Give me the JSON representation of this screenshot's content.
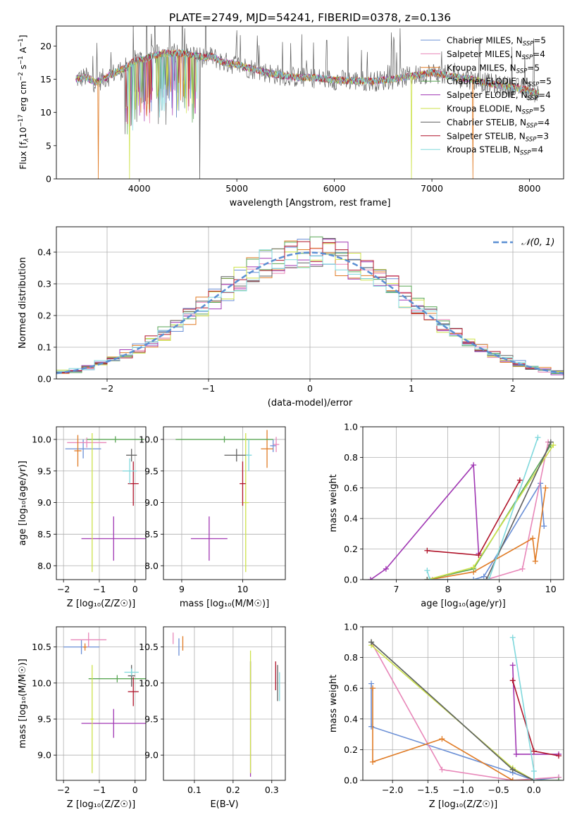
{
  "figure": {
    "title": "PLATE=2749, MJD=54241, FIBERID=0378, z=0.136",
    "series": [
      {
        "name": "Chabrier MILES, N",
        "sub": "SSP",
        "n": "=5",
        "color": "#6a8fd6"
      },
      {
        "name": "Salpeter MILES, N",
        "sub": "SSP",
        "n": "=4",
        "color": "#e887b9"
      },
      {
        "name": "Kroupa MILES, N",
        "sub": "SSP",
        "n": "=5",
        "color": "#e07b25"
      },
      {
        "name": "Chabrier ELODIE, N",
        "sub": "SSP",
        "n": "=5",
        "color": "#5aa655"
      },
      {
        "name": "Salpeter ELODIE, N",
        "sub": "SSP",
        "n": "=4",
        "color": "#a037b3"
      },
      {
        "name": "Kroupa ELODIE, N",
        "sub": "SSP",
        "n": "=5",
        "color": "#cde24a"
      },
      {
        "name": "Chabrier STELIB, N",
        "sub": "SSP",
        "n": "=4",
        "color": "#606060"
      },
      {
        "name": "Salpeter STELIB, N",
        "sub": "SSP",
        "n": "=3",
        "color": "#b0142a"
      },
      {
        "name": "Kroupa STELIB, N",
        "sub": "SSP",
        "n": "=4",
        "color": "#7fd8dc"
      }
    ]
  },
  "chart_data": [
    {
      "id": "spectrum",
      "type": "line",
      "xlabel": "wavelength [Angstrom, rest frame]",
      "ylabel_prefix": "Flux [f",
      "ylabel_sub": "λ",
      "ylabel_mid": "10",
      "ylabel_sup1": "−17",
      "ylabel_mid2": " erg cm",
      "ylabel_sup2": "−2",
      "ylabel_mid3": " s",
      "ylabel_sup3": "−1",
      "ylabel_mid4": " A",
      "ylabel_sup4": "−1",
      "ylabel_end": "]",
      "xlim": [
        3150,
        8350
      ],
      "ylim": [
        0,
        23
      ],
      "xticks": [
        4000,
        5000,
        6000,
        7000,
        8000
      ],
      "yticks": [
        0,
        5,
        10,
        15,
        20
      ],
      "continuum": [
        [
          3350,
          15.0
        ],
        [
          3450,
          15.3
        ],
        [
          3550,
          14.5
        ],
        [
          3650,
          15.2
        ],
        [
          3750,
          16.0
        ],
        [
          3850,
          16.6
        ],
        [
          3950,
          17.8
        ],
        [
          4050,
          18.0
        ],
        [
          4150,
          18.6
        ],
        [
          4250,
          18.9
        ],
        [
          4350,
          18.9
        ],
        [
          4450,
          18.9
        ],
        [
          4550,
          18.6
        ],
        [
          4650,
          18.3
        ],
        [
          4750,
          18.4
        ],
        [
          4850,
          17.6
        ],
        [
          5000,
          17.2
        ],
        [
          5200,
          16.4
        ],
        [
          5400,
          15.7
        ],
        [
          5600,
          15.3
        ],
        [
          5800,
          15.2
        ],
        [
          6000,
          14.9
        ],
        [
          6200,
          14.8
        ],
        [
          6400,
          14.7
        ],
        [
          6600,
          15.0
        ],
        [
          6800,
          15.5
        ],
        [
          7000,
          16.0
        ],
        [
          7200,
          15.4
        ],
        [
          7400,
          15.0
        ],
        [
          7600,
          14.3
        ],
        [
          7800,
          13.9
        ],
        [
          8000,
          13.3
        ],
        [
          8100,
          12.7
        ]
      ],
      "dips": [
        [
          3580,
          0
        ],
        [
          3900,
          0
        ],
        [
          4620,
          0
        ],
        [
          6790,
          0
        ],
        [
          7420,
          0
        ]
      ]
    },
    {
      "id": "residuals",
      "type": "histogram",
      "xlabel": "(data-model)/error",
      "ylabel": "Normed distribution",
      "legend": "𝒩(0, 1)",
      "xlim": [
        -2.5,
        2.5
      ],
      "ylim": [
        0,
        0.48
      ],
      "xticks": [
        -2,
        -1,
        0,
        1,
        2
      ],
      "yticks": [
        0.0,
        0.1,
        0.2,
        0.3,
        0.4
      ],
      "bins": 40,
      "gaussian": {
        "mu": 0,
        "sigma": 1
      }
    },
    {
      "id": "age-vs-z",
      "type": "errorbar",
      "xlabel": "Z [log₁₀(Z/Z☉)]",
      "ylabel": "age  [log₁₀(age/yr)]",
      "xlim": [
        -2.2,
        0.3
      ],
      "ylim": [
        7.78,
        10.2
      ],
      "xticks": [
        -2,
        -1,
        0
      ],
      "yticks": [
        8.0,
        8.5,
        9.0,
        9.5,
        10.0
      ],
      "points": [
        {
          "s": 0,
          "x": -1.45,
          "y": 9.85,
          "xe": 0.5,
          "ye": 0.15
        },
        {
          "s": 1,
          "x": -1.35,
          "y": 9.95,
          "xe": 0.55,
          "ye": 0.08
        },
        {
          "s": 2,
          "x": -1.6,
          "y": 9.82,
          "xe": 0.1,
          "ye": 0.25
        },
        {
          "s": 3,
          "x": -0.55,
          "y": 10.0,
          "xe": 0.8,
          "ye": 0.05
        },
        {
          "s": 4,
          "x": -0.6,
          "y": 8.43,
          "xe": 0.9,
          "ye": 0.35
        },
        {
          "s": 5,
          "x": -1.2,
          "y": 9.0,
          "xe": 0.05,
          "ye": 1.1
        },
        {
          "s": 6,
          "x": -0.1,
          "y": 9.75,
          "xe": 0.15,
          "ye": 0.1
        },
        {
          "s": 7,
          "x": -0.05,
          "y": 9.3,
          "xe": 0.15,
          "ye": 0.35
        },
        {
          "s": 8,
          "x": -0.15,
          "y": 9.5,
          "xe": 0.2,
          "ye": 0.2
        }
      ]
    },
    {
      "id": "age-vs-mass",
      "type": "errorbar",
      "xlabel": "mass [log₁₀(M/M☉)]",
      "ylabel": "",
      "xlim": [
        8.7,
        10.7
      ],
      "ylim": [
        7.78,
        10.2
      ],
      "xticks": [
        9,
        10
      ],
      "yticks": [
        8.0,
        8.5,
        9.0,
        9.5,
        10.0
      ],
      "points": [
        {
          "s": 0,
          "x": 10.5,
          "y": 9.9,
          "xe": 0.05,
          "ye": 0.1
        },
        {
          "s": 1,
          "x": 10.55,
          "y": 9.92,
          "xe": 0.05,
          "ye": 0.12
        },
        {
          "s": 2,
          "x": 10.4,
          "y": 9.85,
          "xe": 0.1,
          "ye": 0.3
        },
        {
          "s": 3,
          "x": 9.7,
          "y": 10.0,
          "xe": 0.8,
          "ye": 0.05
        },
        {
          "s": 4,
          "x": 9.45,
          "y": 8.43,
          "xe": 0.3,
          "ye": 0.35
        },
        {
          "s": 5,
          "x": 10.05,
          "y": 9.0,
          "xe": 0.05,
          "ye": 1.1
        },
        {
          "s": 6,
          "x": 9.9,
          "y": 9.75,
          "xe": 0.2,
          "ye": 0.1
        },
        {
          "s": 7,
          "x": 10.0,
          "y": 9.3,
          "xe": 0.05,
          "ye": 0.35
        },
        {
          "s": 8,
          "x": 10.1,
          "y": 9.75,
          "xe": 0.05,
          "ye": 0.25
        }
      ]
    },
    {
      "id": "weight-vs-age",
      "type": "line",
      "xlabel": "age  [log₁₀(age/yr)]",
      "ylabel": "mass weight",
      "xlim": [
        6.35,
        10.25
      ],
      "ylim": [
        0,
        1.0
      ],
      "xticks": [
        7,
        8,
        9,
        10
      ],
      "yticks": [
        0.0,
        0.2,
        0.4,
        0.6,
        0.8,
        1.0
      ],
      "series": [
        {
          "s": 0,
          "points": [
            [
              7.6,
              0.0
            ],
            [
              8.5,
              0.0
            ],
            [
              8.7,
              0.02
            ],
            [
              9.8,
              0.63
            ],
            [
              9.87,
              0.35
            ]
          ]
        },
        {
          "s": 1,
          "points": [
            [
              7.7,
              0.0
            ],
            [
              8.75,
              0.0
            ],
            [
              9.45,
              0.07
            ],
            [
              9.95,
              0.9
            ]
          ]
        },
        {
          "s": 2,
          "points": [
            [
              7.65,
              0.0
            ],
            [
              8.5,
              0.05
            ],
            [
              9.65,
              0.27
            ],
            [
              9.7,
              0.12
            ],
            [
              9.9,
              0.6
            ]
          ]
        },
        {
          "s": 3,
          "points": [
            [
              7.6,
              0.0
            ],
            [
              8.5,
              0.07
            ],
            [
              10.0,
              0.88
            ]
          ]
        },
        {
          "s": 4,
          "points": [
            [
              6.5,
              0.0
            ],
            [
              6.8,
              0.07
            ],
            [
              8.5,
              0.75
            ],
            [
              8.6,
              0.17
            ]
          ]
        },
        {
          "s": 5,
          "points": [
            [
              7.6,
              0.0
            ],
            [
              8.5,
              0.08
            ],
            [
              10.05,
              0.88
            ]
          ]
        },
        {
          "s": 6,
          "points": [
            [
              7.6,
              0.0
            ],
            [
              8.75,
              0.0
            ],
            [
              10.0,
              0.9
            ]
          ]
        },
        {
          "s": 7,
          "points": [
            [
              7.6,
              0.19
            ],
            [
              8.6,
              0.16
            ],
            [
              9.4,
              0.65
            ]
          ]
        },
        {
          "s": 8,
          "points": [
            [
              7.6,
              0.06
            ],
            [
              7.65,
              0.0
            ],
            [
              8.8,
              0.0
            ],
            [
              9.75,
              0.93
            ]
          ]
        }
      ]
    },
    {
      "id": "mass-vs-z",
      "type": "errorbar",
      "xlabel": "Z [log₁₀(Z/Z☉)]",
      "ylabel": "mass [log₁₀(M/M☉)]",
      "xlim": [
        -2.2,
        0.3
      ],
      "ylim": [
        8.65,
        10.78
      ],
      "xticks": [
        -2,
        -1,
        0
      ],
      "yticks": [
        9.0,
        9.5,
        10.0,
        10.5
      ],
      "points": [
        {
          "s": 0,
          "x": -1.5,
          "y": 10.5,
          "xe": 0.5,
          "ye": 0.1
        },
        {
          "s": 1,
          "x": -1.3,
          "y": 10.6,
          "xe": 0.5,
          "ye": 0.1
        },
        {
          "s": 2,
          "x": -1.4,
          "y": 10.5,
          "xe": 0.05,
          "ye": 0.05
        },
        {
          "s": 3,
          "x": -0.5,
          "y": 10.06,
          "xe": 0.8,
          "ye": 0.05
        },
        {
          "s": 4,
          "x": -0.6,
          "y": 9.44,
          "xe": 0.9,
          "ye": 0.2
        },
        {
          "s": 5,
          "x": -1.2,
          "y": 9.5,
          "xe": 0.05,
          "ye": 0.75
        },
        {
          "s": 6,
          "x": -0.1,
          "y": 10.1,
          "xe": 0.1,
          "ye": 0.15
        },
        {
          "s": 7,
          "x": -0.05,
          "y": 9.88,
          "xe": 0.15,
          "ye": 0.2
        },
        {
          "s": 8,
          "x": -0.1,
          "y": 10.15,
          "xe": 0.2,
          "ye": 0.05
        }
      ]
    },
    {
      "id": "mass-vs-ebv",
      "type": "errorbar",
      "xlabel": "E(B-V)",
      "ylabel": "",
      "xlim": [
        0.02,
        0.335
      ],
      "ylim": [
        8.65,
        10.78
      ],
      "xticks": [
        0.1,
        0.2,
        0.3
      ],
      "yticks": [
        9.0,
        9.5,
        10.0,
        10.5
      ],
      "points": [
        {
          "s": 0,
          "x": 0.06,
          "y": 10.5,
          "xe": 0.0,
          "ye": 0.12
        },
        {
          "s": 1,
          "x": 0.045,
          "y": 10.62,
          "xe": 0.0,
          "ye": 0.08
        },
        {
          "s": 2,
          "x": 0.07,
          "y": 10.55,
          "xe": 0.0,
          "ye": 0.1
        },
        {
          "s": 3,
          "x": 0.245,
          "y": 10.1,
          "xe": 0.0,
          "ye": 0.2
        },
        {
          "s": 4,
          "x": 0.245,
          "y": 9.5,
          "xe": 0.0,
          "ye": 0.8
        },
        {
          "s": 5,
          "x": 0.245,
          "y": 9.6,
          "xe": 0.0,
          "ye": 0.85
        },
        {
          "s": 6,
          "x": 0.315,
          "y": 10.0,
          "xe": 0.0,
          "ye": 0.25
        },
        {
          "s": 7,
          "x": 0.31,
          "y": 10.1,
          "xe": 0.0,
          "ye": 0.2
        },
        {
          "s": 8,
          "x": 0.32,
          "y": 9.95,
          "xe": 0.0,
          "ye": 0.2
        }
      ]
    },
    {
      "id": "weight-vs-z",
      "type": "line",
      "xlabel": "Z [log₁₀(Z/Z☉)]",
      "ylabel": "mass weight",
      "xlim": [
        -2.42,
        0.42
      ],
      "ylim": [
        0,
        1.0
      ],
      "xticks": [
        -2.0,
        -1.5,
        -1.0,
        -0.5,
        0.0
      ],
      "yticks": [
        0.0,
        0.2,
        0.4,
        0.6,
        0.8,
        1.0
      ],
      "series": [
        {
          "s": 0,
          "points": [
            [
              -2.3,
              0.63
            ],
            [
              -2.3,
              0.35
            ],
            [
              -0.3,
              0.05
            ],
            [
              0.0,
              0.0
            ],
            [
              0.35,
              0.02
            ]
          ]
        },
        {
          "s": 1,
          "points": [
            [
              -2.3,
              0.9
            ],
            [
              -1.3,
              0.07
            ],
            [
              -0.3,
              0.0
            ],
            [
              0.35,
              0.02
            ]
          ]
        },
        {
          "s": 2,
          "points": [
            [
              -2.28,
              0.6
            ],
            [
              -2.28,
              0.12
            ],
            [
              -1.3,
              0.27
            ],
            [
              -0.3,
              0.0
            ],
            [
              0.0,
              0.0
            ]
          ]
        },
        {
          "s": 3,
          "points": [
            [
              -2.3,
              0.9
            ],
            [
              -0.3,
              0.07
            ],
            [
              0.0,
              0.0
            ],
            [
              0.35,
              0.0
            ]
          ]
        },
        {
          "s": 4,
          "points": [
            [
              -0.3,
              0.75
            ],
            [
              -0.25,
              0.17
            ],
            [
              0.35,
              0.17
            ]
          ]
        },
        {
          "s": 5,
          "points": [
            [
              -2.3,
              0.88
            ],
            [
              -0.3,
              0.08
            ],
            [
              0.0,
              0.0
            ]
          ]
        },
        {
          "s": 6,
          "points": [
            [
              -2.3,
              0.9
            ],
            [
              -0.3,
              0.07
            ],
            [
              0.0,
              0.0
            ]
          ]
        },
        {
          "s": 7,
          "points": [
            [
              -0.3,
              0.65
            ],
            [
              0.0,
              0.19
            ],
            [
              0.35,
              0.16
            ]
          ]
        },
        {
          "s": 8,
          "points": [
            [
              -0.3,
              0.93
            ],
            [
              0.0,
              0.06
            ],
            [
              0.0,
              0.0
            ]
          ]
        }
      ]
    }
  ]
}
